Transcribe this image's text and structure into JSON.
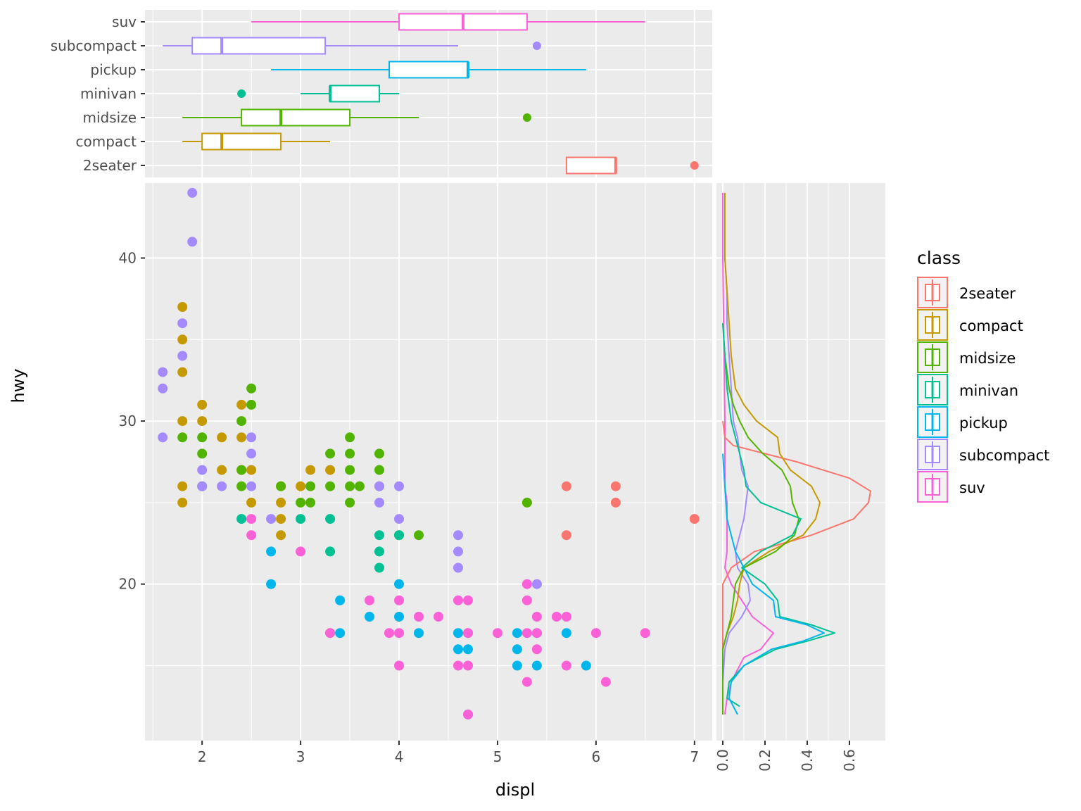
{
  "chart_data": {
    "type": "scatter",
    "title": "",
    "xlabel": "displ",
    "ylabel": "hwy",
    "xlim": [
      1.42,
      7.18
    ],
    "ylim": [
      10.4,
      44.6
    ],
    "x_ticks": [
      2,
      3,
      4,
      5,
      6,
      7
    ],
    "x_tick_labels": [
      "2",
      "3",
      "4",
      "5",
      "6",
      "7"
    ],
    "y_ticks": [
      20,
      30,
      40
    ],
    "y_tick_labels": [
      "20",
      "30",
      "40"
    ],
    "grid": true,
    "legend": {
      "title": "class",
      "placement": "right",
      "entries": [
        "2seater",
        "compact",
        "midsize",
        "minivan",
        "pickup",
        "subcompact",
        "suv"
      ]
    },
    "colors": {
      "2seater": "#F8766D",
      "compact": "#C49A00",
      "midsize": "#53B400",
      "minivan": "#00C094",
      "pickup": "#00B6EB",
      "subcompact": "#A58AFF",
      "suv": "#FB61D7"
    },
    "categories": [
      "2seater",
      "compact",
      "midsize",
      "minivan",
      "pickup",
      "subcompact",
      "suv"
    ],
    "series": [
      {
        "name": "2seater",
        "points": [
          [
            5.7,
            26
          ],
          [
            5.7,
            23
          ],
          [
            6.2,
            26
          ],
          [
            6.2,
            25
          ],
          [
            7.0,
            24
          ]
        ]
      },
      {
        "name": "compact",
        "points": [
          [
            1.8,
            37
          ],
          [
            1.8,
            35
          ],
          [
            1.8,
            33
          ],
          [
            1.8,
            30
          ],
          [
            1.8,
            26
          ],
          [
            1.8,
            25
          ],
          [
            2.0,
            31
          ],
          [
            2.0,
            30
          ],
          [
            2.2,
            29
          ],
          [
            2.2,
            27
          ],
          [
            2.4,
            31
          ],
          [
            2.4,
            29
          ],
          [
            2.4,
            27
          ],
          [
            2.5,
            27
          ],
          [
            2.5,
            25
          ],
          [
            2.8,
            26
          ],
          [
            2.8,
            25
          ],
          [
            2.8,
            24
          ],
          [
            2.8,
            23
          ],
          [
            3.0,
            26
          ],
          [
            3.1,
            27
          ],
          [
            3.3,
            27
          ],
          [
            3.3,
            17
          ]
        ]
      },
      {
        "name": "midsize",
        "points": [
          [
            1.8,
            29
          ],
          [
            2.0,
            29
          ],
          [
            2.0,
            28
          ],
          [
            2.0,
            26
          ],
          [
            2.4,
            30
          ],
          [
            2.4,
            27
          ],
          [
            2.4,
            26
          ],
          [
            2.5,
            32
          ],
          [
            2.5,
            31
          ],
          [
            2.8,
            26
          ],
          [
            3.0,
            25
          ],
          [
            3.1,
            26
          ],
          [
            3.1,
            25
          ],
          [
            3.3,
            28
          ],
          [
            3.3,
            26
          ],
          [
            3.5,
            29
          ],
          [
            3.5,
            28
          ],
          [
            3.5,
            27
          ],
          [
            3.5,
            26
          ],
          [
            3.5,
            25
          ],
          [
            3.6,
            26
          ],
          [
            3.8,
            28
          ],
          [
            3.8,
            27
          ],
          [
            3.8,
            26
          ],
          [
            4.0,
            23
          ],
          [
            4.2,
            23
          ],
          [
            5.3,
            25
          ]
        ]
      },
      {
        "name": "minivan",
        "points": [
          [
            2.4,
            24
          ],
          [
            3.0,
            24
          ],
          [
            3.3,
            24
          ],
          [
            3.3,
            22
          ],
          [
            3.8,
            23
          ],
          [
            3.8,
            22
          ],
          [
            3.8,
            21
          ],
          [
            4.0,
            23
          ]
        ]
      },
      {
        "name": "pickup",
        "points": [
          [
            2.7,
            22
          ],
          [
            2.7,
            20
          ],
          [
            3.4,
            19
          ],
          [
            3.4,
            17
          ],
          [
            3.7,
            18
          ],
          [
            4.0,
            20
          ],
          [
            4.0,
            18
          ],
          [
            4.2,
            17
          ],
          [
            4.6,
            17
          ],
          [
            4.6,
            16
          ],
          [
            4.7,
            17
          ],
          [
            4.7,
            16
          ],
          [
            4.7,
            12
          ],
          [
            5.2,
            17
          ],
          [
            5.2,
            16
          ],
          [
            5.2,
            15
          ],
          [
            5.4,
            17
          ],
          [
            5.4,
            15
          ],
          [
            5.7,
            17
          ],
          [
            5.9,
            15
          ]
        ]
      },
      {
        "name": "subcompact",
        "points": [
          [
            1.6,
            33
          ],
          [
            1.6,
            32
          ],
          [
            1.6,
            29
          ],
          [
            1.8,
            36
          ],
          [
            1.8,
            34
          ],
          [
            1.9,
            44
          ],
          [
            1.9,
            41
          ],
          [
            2.0,
            27
          ],
          [
            2.0,
            26
          ],
          [
            2.2,
            26
          ],
          [
            2.5,
            29
          ],
          [
            2.5,
            28
          ],
          [
            2.5,
            26
          ],
          [
            2.7,
            24
          ],
          [
            3.8,
            26
          ],
          [
            3.8,
            25
          ],
          [
            4.0,
            26
          ],
          [
            4.0,
            24
          ],
          [
            4.6,
            23
          ],
          [
            4.6,
            22
          ],
          [
            4.6,
            21
          ],
          [
            5.4,
            20
          ]
        ]
      },
      {
        "name": "suv",
        "points": [
          [
            2.5,
            24
          ],
          [
            2.5,
            23
          ],
          [
            3.0,
            22
          ],
          [
            3.3,
            17
          ],
          [
            3.7,
            19
          ],
          [
            3.9,
            17
          ],
          [
            4.0,
            19
          ],
          [
            4.0,
            17
          ],
          [
            4.0,
            15
          ],
          [
            4.2,
            18
          ],
          [
            4.4,
            18
          ],
          [
            4.6,
            19
          ],
          [
            4.6,
            15
          ],
          [
            4.7,
            19
          ],
          [
            4.7,
            17
          ],
          [
            4.7,
            15
          ],
          [
            4.7,
            12
          ],
          [
            5.0,
            17
          ],
          [
            5.3,
            20
          ],
          [
            5.3,
            19
          ],
          [
            5.3,
            17
          ],
          [
            5.3,
            14
          ],
          [
            5.4,
            18
          ],
          [
            5.4,
            17
          ],
          [
            5.4,
            16
          ],
          [
            5.6,
            18
          ],
          [
            5.7,
            18
          ],
          [
            5.7,
            15
          ],
          [
            6.0,
            17
          ],
          [
            6.1,
            14
          ],
          [
            6.5,
            17
          ]
        ]
      }
    ],
    "boxplot": {
      "axis": "displ",
      "categories": [
        "2seater",
        "compact",
        "midsize",
        "minivan",
        "pickup",
        "subcompact",
        "suv"
      ],
      "stats": {
        "2seater": {
          "lower": 5.7,
          "q1": 5.7,
          "median": 6.2,
          "q3": 6.2,
          "upper": 6.2,
          "outliers": [
            7.0
          ]
        },
        "compact": {
          "lower": 1.8,
          "q1": 2.0,
          "median": 2.2,
          "q3": 2.8,
          "upper": 3.3,
          "outliers": []
        },
        "midsize": {
          "lower": 1.8,
          "q1": 2.4,
          "median": 2.8,
          "q3": 3.5,
          "upper": 4.2,
          "outliers": [
            5.3
          ]
        },
        "minivan": {
          "lower": 3.0,
          "q1": 3.3,
          "median": 3.3,
          "q3": 3.8,
          "upper": 4.0,
          "outliers": [
            2.4
          ]
        },
        "pickup": {
          "lower": 2.7,
          "q1": 3.9,
          "median": 4.7,
          "q3": 4.7,
          "upper": 5.9,
          "outliers": []
        },
        "subcompact": {
          "lower": 1.6,
          "q1": 1.9,
          "median": 2.2,
          "q3": 3.25,
          "upper": 4.6,
          "outliers": [
            5.4
          ]
        },
        "suv": {
          "lower": 2.5,
          "q1": 4.0,
          "median": 4.65,
          "q3": 5.3,
          "upper": 6.5,
          "outliers": []
        }
      }
    },
    "density": {
      "axis": "hwy",
      "xlim": [
        -0.03,
        0.77
      ],
      "x_ticks": [
        0.0,
        0.2,
        0.4,
        0.6
      ],
      "x_tick_labels": [
        "0.0",
        "0.2",
        "0.4",
        "0.6"
      ],
      "curves": {
        "2seater": [
          [
            12,
            0
          ],
          [
            20,
            0
          ],
          [
            21,
            0.04
          ],
          [
            22,
            0.15
          ],
          [
            23,
            0.42
          ],
          [
            24,
            0.62
          ],
          [
            25,
            0.69
          ],
          [
            25.7,
            0.7
          ],
          [
            26.5,
            0.6
          ],
          [
            27.5,
            0.35
          ],
          [
            28.5,
            0.05
          ],
          [
            29,
            0.01
          ],
          [
            30,
            0
          ]
        ],
        "compact": [
          [
            12,
            0
          ],
          [
            16,
            0
          ],
          [
            17,
            0.02
          ],
          [
            18,
            0.05
          ],
          [
            19,
            0.07
          ],
          [
            20,
            0.08
          ],
          [
            21,
            0.1
          ],
          [
            22,
            0.22
          ],
          [
            23,
            0.38
          ],
          [
            24,
            0.44
          ],
          [
            25,
            0.46
          ],
          [
            26,
            0.42
          ],
          [
            27,
            0.32
          ],
          [
            28,
            0.27
          ],
          [
            29,
            0.26
          ],
          [
            30,
            0.16
          ],
          [
            31,
            0.1
          ],
          [
            32,
            0.06
          ],
          [
            34,
            0.04
          ],
          [
            36,
            0.03
          ],
          [
            38,
            0.02
          ],
          [
            40,
            0.01
          ],
          [
            44,
            0.01
          ]
        ],
        "midsize": [
          [
            12,
            0
          ],
          [
            16,
            0
          ],
          [
            17,
            0.02
          ],
          [
            18,
            0.04
          ],
          [
            19,
            0.05
          ],
          [
            20,
            0.06
          ],
          [
            21,
            0.1
          ],
          [
            22,
            0.25
          ],
          [
            23,
            0.34
          ],
          [
            24,
            0.36
          ],
          [
            25,
            0.33
          ],
          [
            26,
            0.32
          ],
          [
            27,
            0.28
          ],
          [
            28,
            0.19
          ],
          [
            29,
            0.12
          ],
          [
            30,
            0.08
          ],
          [
            31,
            0.05
          ],
          [
            32,
            0.03
          ],
          [
            34,
            0.01
          ],
          [
            36,
            0
          ]
        ],
        "minivan": [
          [
            12.5,
            0.08
          ],
          [
            13,
            0.02
          ],
          [
            14,
            0.03
          ],
          [
            15,
            0.1
          ],
          [
            16,
            0.25
          ],
          [
            16.5,
            0.4
          ],
          [
            17,
            0.53
          ],
          [
            17.5,
            0.42
          ],
          [
            18,
            0.27
          ],
          [
            19,
            0.26
          ],
          [
            20,
            0.2
          ],
          [
            21,
            0.09
          ],
          [
            22,
            0.18
          ],
          [
            23,
            0.33
          ],
          [
            24,
            0.37
          ],
          [
            25,
            0.18
          ],
          [
            26,
            0.11
          ],
          [
            27,
            0.1
          ],
          [
            28,
            0.08
          ],
          [
            30,
            0.04
          ],
          [
            32,
            0.02
          ],
          [
            34,
            0.01
          ],
          [
            36,
            0
          ]
        ],
        "pickup": [
          [
            12,
            0.07
          ],
          [
            12.5,
            0.05
          ],
          [
            13,
            0.03
          ],
          [
            14,
            0.04
          ],
          [
            15,
            0.1
          ],
          [
            16,
            0.23
          ],
          [
            16.5,
            0.38
          ],
          [
            17,
            0.48
          ],
          [
            17.5,
            0.4
          ],
          [
            18,
            0.25
          ],
          [
            19,
            0.24
          ],
          [
            20,
            0.14
          ],
          [
            21,
            0.1
          ],
          [
            22,
            0.06
          ],
          [
            24,
            0.02
          ],
          [
            26,
            0.01
          ],
          [
            28,
            0
          ]
        ],
        "subcompact": [
          [
            12,
            0
          ],
          [
            14,
            0
          ],
          [
            16,
            0.01
          ],
          [
            17,
            0.03
          ],
          [
            18,
            0.09
          ],
          [
            19,
            0.13
          ],
          [
            20,
            0.12
          ],
          [
            21,
            0.07
          ],
          [
            22,
            0.06
          ],
          [
            23,
            0.08
          ],
          [
            24,
            0.1
          ],
          [
            25,
            0.11
          ],
          [
            26,
            0.12
          ],
          [
            27,
            0.09
          ],
          [
            28,
            0.08
          ],
          [
            29,
            0.07
          ],
          [
            30,
            0.05
          ],
          [
            32,
            0.04
          ],
          [
            34,
            0.03
          ],
          [
            36,
            0.02
          ],
          [
            38,
            0.02
          ],
          [
            40,
            0.01
          ],
          [
            42,
            0.01
          ],
          [
            44,
            0.01
          ]
        ],
        "suv": [
          [
            12,
            0.01
          ],
          [
            13,
            0.02
          ],
          [
            14,
            0.04
          ],
          [
            15,
            0.08
          ],
          [
            15.5,
            0.1
          ],
          [
            16,
            0.18
          ],
          [
            17,
            0.24
          ],
          [
            18,
            0.14
          ],
          [
            19,
            0.09
          ],
          [
            20,
            0.04
          ],
          [
            21,
            0.01
          ],
          [
            22,
            0.02
          ],
          [
            23,
            0.02
          ],
          [
            24,
            0.02
          ],
          [
            25,
            0.02
          ],
          [
            26,
            0.01
          ],
          [
            30,
            0.01
          ],
          [
            40,
            0
          ],
          [
            44,
            0
          ]
        ]
      }
    }
  }
}
